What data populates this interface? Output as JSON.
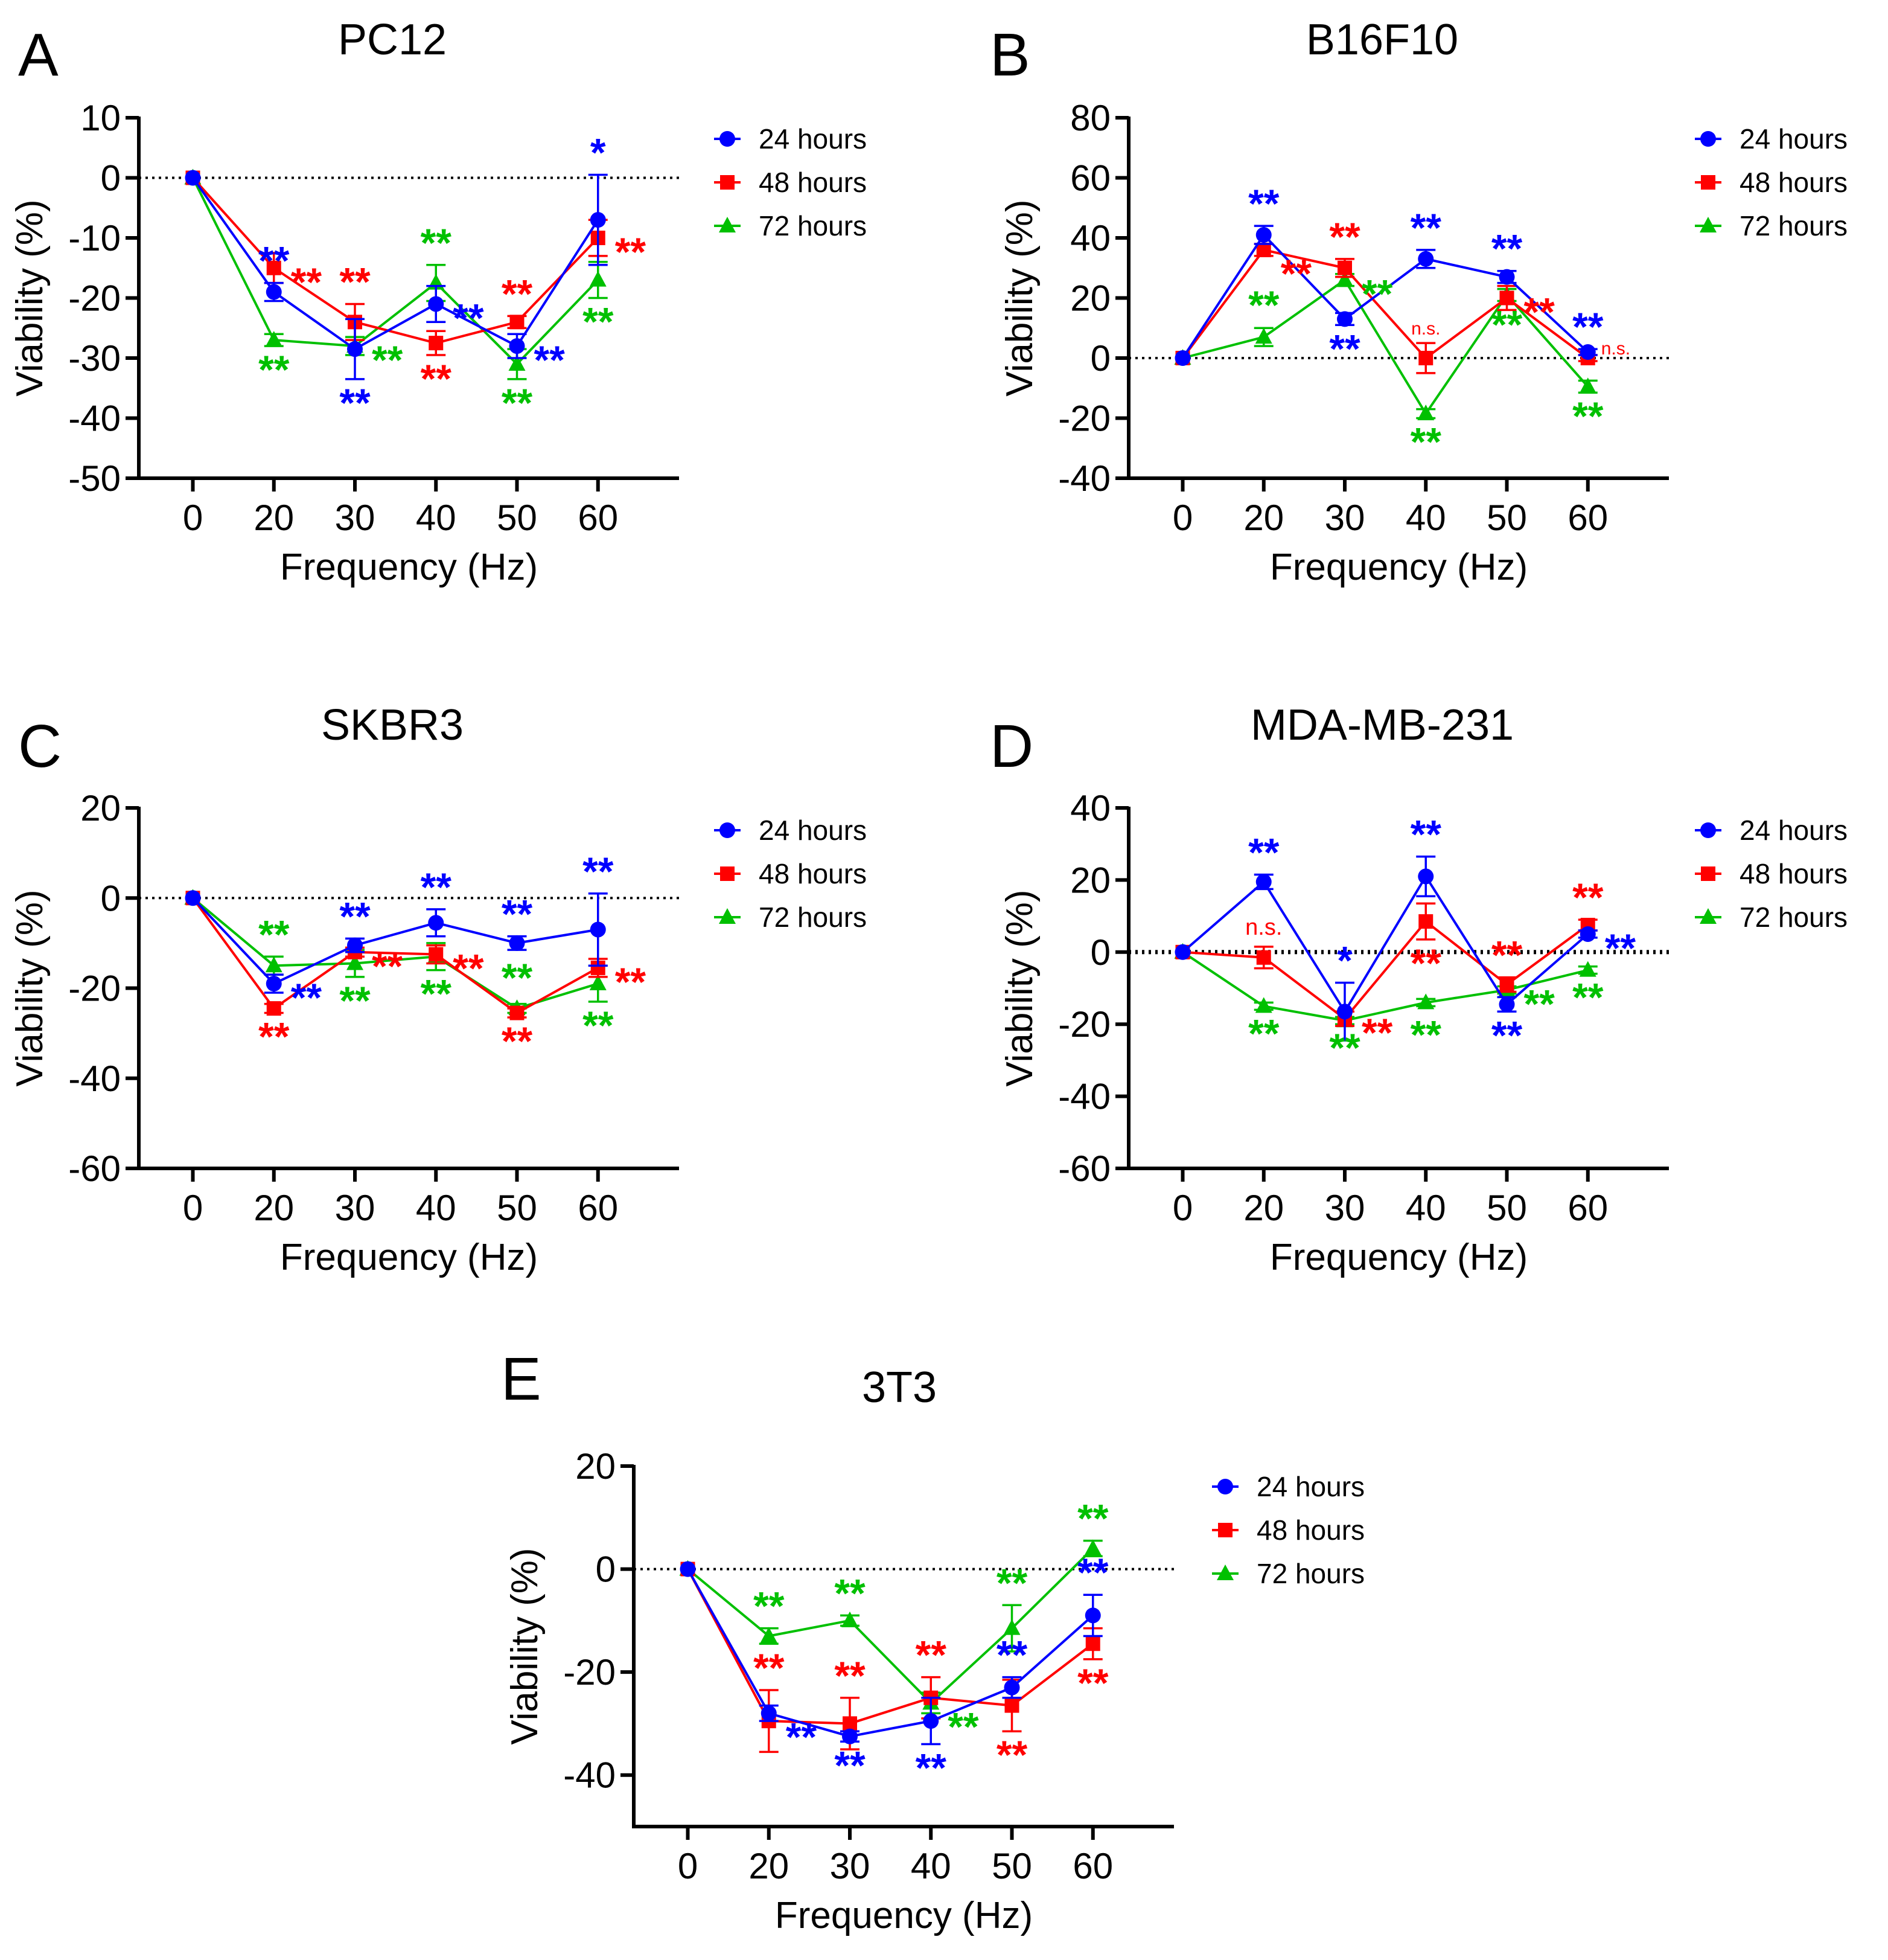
{
  "figure": {
    "colors": {
      "24 hours": "#0000ff",
      "48 hours": "#ff0000",
      "72 hours": "#00c000",
      "axis": "#000000"
    }
  },
  "chart_data": [
    {
      "type": "line",
      "panel": "A",
      "title": "PC12",
      "xlabel": "Frequency (Hz)",
      "ylabel": "Viability (%)",
      "categories": [
        "0",
        "20",
        "30",
        "40",
        "50",
        "60"
      ],
      "ylim": [
        -50,
        10
      ],
      "yticks": [
        "10",
        "0",
        "-10",
        "-20",
        "-30",
        "-40",
        "-50"
      ],
      "ytick_values": [
        10,
        0,
        -10,
        -20,
        -30,
        -40,
        -50
      ],
      "reference_line": 0,
      "legend_position": "right",
      "series": [
        {
          "name": "24 hours",
          "color": "#0000ff",
          "marker": "circle",
          "values": [
            0,
            -19,
            -28.5,
            -21,
            -28,
            -7
          ],
          "errors": [
            0,
            1.5,
            5,
            3,
            2,
            7.5
          ]
        },
        {
          "name": "48 hours",
          "color": "#ff0000",
          "marker": "square",
          "values": [
            0,
            -15,
            -24,
            -27.5,
            -24,
            -10
          ],
          "errors": [
            0,
            2.5,
            3,
            2,
            1,
            3
          ]
        },
        {
          "name": "72 hours",
          "color": "#00c000",
          "marker": "triangle",
          "values": [
            0,
            -27,
            -28,
            -17.5,
            -31,
            -17
          ],
          "errors": [
            0,
            1,
            1.5,
            3,
            2.5,
            3
          ]
        }
      ],
      "annotations": [
        {
          "text": "**",
          "series": "24 hours",
          "x": "20",
          "pos": "above"
        },
        {
          "text": "**",
          "series": "48 hours",
          "x": "20",
          "pos": "right"
        },
        {
          "text": "**",
          "series": "72 hours",
          "x": "20",
          "pos": "below"
        },
        {
          "text": "**",
          "series": "48 hours",
          "x": "30",
          "pos": "above"
        },
        {
          "text": "**",
          "series": "72 hours",
          "x": "30",
          "pos": "right"
        },
        {
          "text": "**",
          "series": "24 hours",
          "x": "30",
          "pos": "below"
        },
        {
          "text": "**",
          "series": "72 hours",
          "x": "40",
          "pos": "above"
        },
        {
          "text": "**",
          "series": "24 hours",
          "x": "40",
          "pos": "right"
        },
        {
          "text": "**",
          "series": "48 hours",
          "x": "40",
          "pos": "below"
        },
        {
          "text": "**",
          "series": "48 hours",
          "x": "50",
          "pos": "above"
        },
        {
          "text": "**",
          "series": "24 hours",
          "x": "50",
          "pos": "right"
        },
        {
          "text": "**",
          "series": "72 hours",
          "x": "50",
          "pos": "below"
        },
        {
          "text": "*",
          "series": "24 hours",
          "x": "60",
          "pos": "above"
        },
        {
          "text": "**",
          "series": "48 hours",
          "x": "60",
          "pos": "right"
        },
        {
          "text": "**",
          "series": "72 hours",
          "x": "60",
          "pos": "below"
        }
      ]
    },
    {
      "type": "line",
      "panel": "B",
      "title": "B16F10",
      "xlabel": "Frequency (Hz)",
      "ylabel": "Viability (%)",
      "categories": [
        "0",
        "20",
        "30",
        "40",
        "50",
        "60"
      ],
      "ylim": [
        -40,
        80
      ],
      "yticks": [
        "80",
        "60",
        "40",
        "20",
        "0",
        "-20",
        "-40"
      ],
      "ytick_values": [
        80,
        60,
        40,
        20,
        0,
        -20,
        -40
      ],
      "reference_line": 0,
      "legend_position": "right",
      "series": [
        {
          "name": "24 hours",
          "color": "#0000ff",
          "marker": "circle",
          "values": [
            0,
            41,
            13,
            33,
            27,
            2
          ],
          "errors": [
            0,
            3,
            2,
            3,
            2,
            1
          ]
        },
        {
          "name": "48 hours",
          "color": "#ff0000",
          "marker": "square",
          "values": [
            0,
            36,
            30,
            0,
            20,
            0
          ],
          "errors": [
            0,
            2,
            3,
            5,
            4,
            1
          ]
        },
        {
          "name": "72 hours",
          "color": "#00c000",
          "marker": "triangle",
          "values": [
            0,
            7,
            26,
            -18.5,
            21,
            -9.5
          ],
          "errors": [
            0,
            3,
            2,
            1.5,
            2,
            2
          ]
        }
      ],
      "annotations": [
        {
          "text": "**",
          "series": "24 hours",
          "x": "20",
          "pos": "above"
        },
        {
          "text": "**",
          "series": "48 hours",
          "x": "20",
          "pos": "rightbelow"
        },
        {
          "text": "**",
          "series": "72 hours",
          "x": "20",
          "pos": "low"
        },
        {
          "text": "**",
          "series": "48 hours",
          "x": "30",
          "pos": "above"
        },
        {
          "text": "**",
          "series": "72 hours",
          "x": "30",
          "pos": "right"
        },
        {
          "text": "**",
          "series": "24 hours",
          "x": "30",
          "pos": "below"
        },
        {
          "text": "**",
          "series": "24 hours",
          "x": "40",
          "pos": "above"
        },
        {
          "text": "n.s.",
          "series": "48 hours",
          "x": "40",
          "pos": "ns-above"
        },
        {
          "text": "**",
          "series": "72 hours",
          "x": "40",
          "pos": "below"
        },
        {
          "text": "**",
          "series": "24 hours",
          "x": "50",
          "pos": "above"
        },
        {
          "text": "**",
          "series": "48 hours",
          "x": "50",
          "pos": "right"
        },
        {
          "text": "**",
          "series": "72 hours",
          "x": "50",
          "pos": "below"
        },
        {
          "text": "**",
          "series": "24 hours",
          "x": "60",
          "pos": "above"
        },
        {
          "text": "n.s.",
          "series": "48 hours",
          "x": "60",
          "pos": "ns-right"
        },
        {
          "text": "**",
          "series": "72 hours",
          "x": "60",
          "pos": "below"
        }
      ]
    },
    {
      "type": "line",
      "panel": "C",
      "title": "SKBR3",
      "xlabel": "Frequency (Hz)",
      "ylabel": "Viability (%)",
      "categories": [
        "0",
        "20",
        "30",
        "40",
        "50",
        "60"
      ],
      "ylim": [
        -60,
        20
      ],
      "yticks": [
        "20",
        "0",
        "-20",
        "-40",
        "-60"
      ],
      "ytick_values": [
        20,
        0,
        -20,
        -40,
        -60
      ],
      "reference_line": 0,
      "legend_position": "right",
      "series": [
        {
          "name": "24 hours",
          "color": "#0000ff",
          "marker": "circle",
          "values": [
            0,
            -19,
            -10.5,
            -5.5,
            -10,
            -7
          ],
          "errors": [
            0,
            2,
            1.5,
            3,
            1.5,
            8
          ]
        },
        {
          "name": "48 hours",
          "color": "#ff0000",
          "marker": "square",
          "values": [
            0,
            -24.5,
            -12,
            -12.5,
            -25.5,
            -15.5
          ],
          "errors": [
            0,
            1,
            1,
            2,
            1,
            2
          ]
        },
        {
          "name": "72 hours",
          "color": "#00c000",
          "marker": "triangle",
          "values": [
            0,
            -15,
            -14.5,
            -13,
            -24.5,
            -19
          ],
          "errors": [
            0,
            2,
            3,
            3,
            1,
            4
          ]
        }
      ],
      "annotations": [
        {
          "text": "**",
          "series": "72 hours",
          "x": "20",
          "pos": "above"
        },
        {
          "text": "**",
          "series": "24 hours",
          "x": "20",
          "pos": "right"
        },
        {
          "text": "**",
          "series": "48 hours",
          "x": "20",
          "pos": "below"
        },
        {
          "text": "**",
          "series": "24 hours",
          "x": "30",
          "pos": "above"
        },
        {
          "text": "**",
          "series": "48 hours",
          "x": "30",
          "pos": "right"
        },
        {
          "text": "**",
          "series": "72 hours",
          "x": "30",
          "pos": "below"
        },
        {
          "text": "**",
          "series": "24 hours",
          "x": "40",
          "pos": "above"
        },
        {
          "text": "**",
          "series": "48 hours",
          "x": "40",
          "pos": "right"
        },
        {
          "text": "**",
          "series": "72 hours",
          "x": "40",
          "pos": "below"
        },
        {
          "text": "**",
          "series": "24 hours",
          "x": "50",
          "pos": "above"
        },
        {
          "text": "**",
          "series": "72 hours",
          "x": "50",
          "pos": "midabove"
        },
        {
          "text": "**",
          "series": "48 hours",
          "x": "50",
          "pos": "below"
        },
        {
          "text": "**",
          "series": "24 hours",
          "x": "60",
          "pos": "above"
        },
        {
          "text": "**",
          "series": "48 hours",
          "x": "60",
          "pos": "right"
        },
        {
          "text": "**",
          "series": "72 hours",
          "x": "60",
          "pos": "below"
        }
      ]
    },
    {
      "type": "line",
      "panel": "D",
      "title": "MDA-MB-231",
      "xlabel": "Frequency (Hz)",
      "ylabel": "Viability (%)",
      "categories": [
        "0",
        "20",
        "30",
        "40",
        "50",
        "60"
      ],
      "ylim": [
        -60,
        40
      ],
      "yticks": [
        "40",
        "20",
        "0",
        "-20",
        "-40",
        "-60"
      ],
      "ytick_values": [
        40,
        20,
        0,
        -20,
        -40,
        -60
      ],
      "reference_line": 0,
      "legend_position": "right",
      "series": [
        {
          "name": "24 hours",
          "color": "#0000ff",
          "marker": "circle",
          "values": [
            0,
            19.5,
            -16.5,
            21,
            -14.5,
            5
          ],
          "errors": [
            0,
            2,
            8,
            5.5,
            2,
            1
          ]
        },
        {
          "name": "48 hours",
          "color": "#ff0000",
          "marker": "square",
          "values": [
            0,
            -1.5,
            -18.5,
            8.5,
            -9,
            7.5
          ],
          "errors": [
            0,
            3,
            2,
            5,
            2,
            1.5
          ]
        },
        {
          "name": "72 hours",
          "color": "#00c000",
          "marker": "triangle",
          "values": [
            0,
            -15,
            -19,
            -14,
            -10.5,
            -5
          ],
          "errors": [
            0,
            1,
            1,
            1,
            1,
            1
          ]
        }
      ],
      "annotations": [
        {
          "text": "**",
          "series": "24 hours",
          "x": "20",
          "pos": "above"
        },
        {
          "text": "n.s.",
          "series": "48 hours",
          "x": "20",
          "pos": "ns-above-big"
        },
        {
          "text": "**",
          "series": "72 hours",
          "x": "20",
          "pos": "below"
        },
        {
          "text": "*",
          "series": "24 hours",
          "x": "30",
          "pos": "above"
        },
        {
          "text": "**",
          "series": "48 hours",
          "x": "30",
          "pos": "right"
        },
        {
          "text": "**",
          "series": "72 hours",
          "x": "30",
          "pos": "below"
        },
        {
          "text": "**",
          "series": "24 hours",
          "x": "40",
          "pos": "above"
        },
        {
          "text": "**",
          "series": "48 hours",
          "x": "40",
          "pos": "below"
        },
        {
          "text": "**",
          "series": "72 hours",
          "x": "40",
          "pos": "below2"
        },
        {
          "text": "**",
          "series": "48 hours",
          "x": "50",
          "pos": "above"
        },
        {
          "text": "**",
          "series": "72 hours",
          "x": "50",
          "pos": "right"
        },
        {
          "text": "**",
          "series": "24 hours",
          "x": "50",
          "pos": "below"
        },
        {
          "text": "**",
          "series": "48 hours",
          "x": "60",
          "pos": "above"
        },
        {
          "text": "**",
          "series": "24 hours",
          "x": "60",
          "pos": "right"
        },
        {
          "text": "**",
          "series": "72 hours",
          "x": "60",
          "pos": "below"
        }
      ]
    },
    {
      "type": "line",
      "panel": "E",
      "title": "3T3",
      "xlabel": "Frequency (Hz)",
      "ylabel": "Viability (%)",
      "categories": [
        "0",
        "20",
        "30",
        "40",
        "50",
        "60"
      ],
      "ylim": [
        -50,
        20
      ],
      "yticks": [
        "20",
        "0",
        "-20",
        "-40"
      ],
      "ytick_values": [
        20,
        0,
        -20,
        -40
      ],
      "reference_line": 0,
      "legend_position": "right",
      "series": [
        {
          "name": "24 hours",
          "color": "#0000ff",
          "marker": "circle",
          "values": [
            0,
            -28,
            -32.5,
            -29.5,
            -23,
            -9
          ],
          "errors": [
            0,
            1.5,
            1,
            4.5,
            2,
            4
          ]
        },
        {
          "name": "48 hours",
          "color": "#ff0000",
          "marker": "square",
          "values": [
            0,
            -29.5,
            -30,
            -25,
            -26.5,
            -14.5
          ],
          "errors": [
            0,
            6,
            5,
            4,
            5,
            3
          ]
        },
        {
          "name": "72 hours",
          "color": "#00c000",
          "marker": "triangle",
          "values": [
            0,
            -13,
            -10,
            -26,
            -11.5,
            4
          ],
          "errors": [
            0,
            1.5,
            1,
            2,
            4.5,
            1.5
          ]
        }
      ],
      "annotations": [
        {
          "text": "**",
          "series": "72 hours",
          "x": "20",
          "pos": "above"
        },
        {
          "text": "**",
          "series": "48 hours",
          "x": "20",
          "pos": "above"
        },
        {
          "text": "**",
          "series": "24 hours",
          "x": "20",
          "pos": "rightbelow"
        },
        {
          "text": "**",
          "series": "72 hours",
          "x": "30",
          "pos": "above"
        },
        {
          "text": "**",
          "series": "48 hours",
          "x": "30",
          "pos": "above"
        },
        {
          "text": "**",
          "series": "24 hours",
          "x": "30",
          "pos": "below"
        },
        {
          "text": "**",
          "series": "48 hours",
          "x": "40",
          "pos": "above"
        },
        {
          "text": "**",
          "series": "72 hours",
          "x": "40",
          "pos": "rightbelow"
        },
        {
          "text": "**",
          "series": "24 hours",
          "x": "40",
          "pos": "below"
        },
        {
          "text": "**",
          "series": "72 hours",
          "x": "50",
          "pos": "above"
        },
        {
          "text": "**",
          "series": "24 hours",
          "x": "50",
          "pos": "above"
        },
        {
          "text": "**",
          "series": "48 hours",
          "x": "50",
          "pos": "below"
        },
        {
          "text": "**",
          "series": "72 hours",
          "x": "60",
          "pos": "above"
        },
        {
          "text": "**",
          "series": "24 hours",
          "x": "60",
          "pos": "above2"
        },
        {
          "text": "**",
          "series": "48 hours",
          "x": "60",
          "pos": "below"
        }
      ]
    }
  ]
}
